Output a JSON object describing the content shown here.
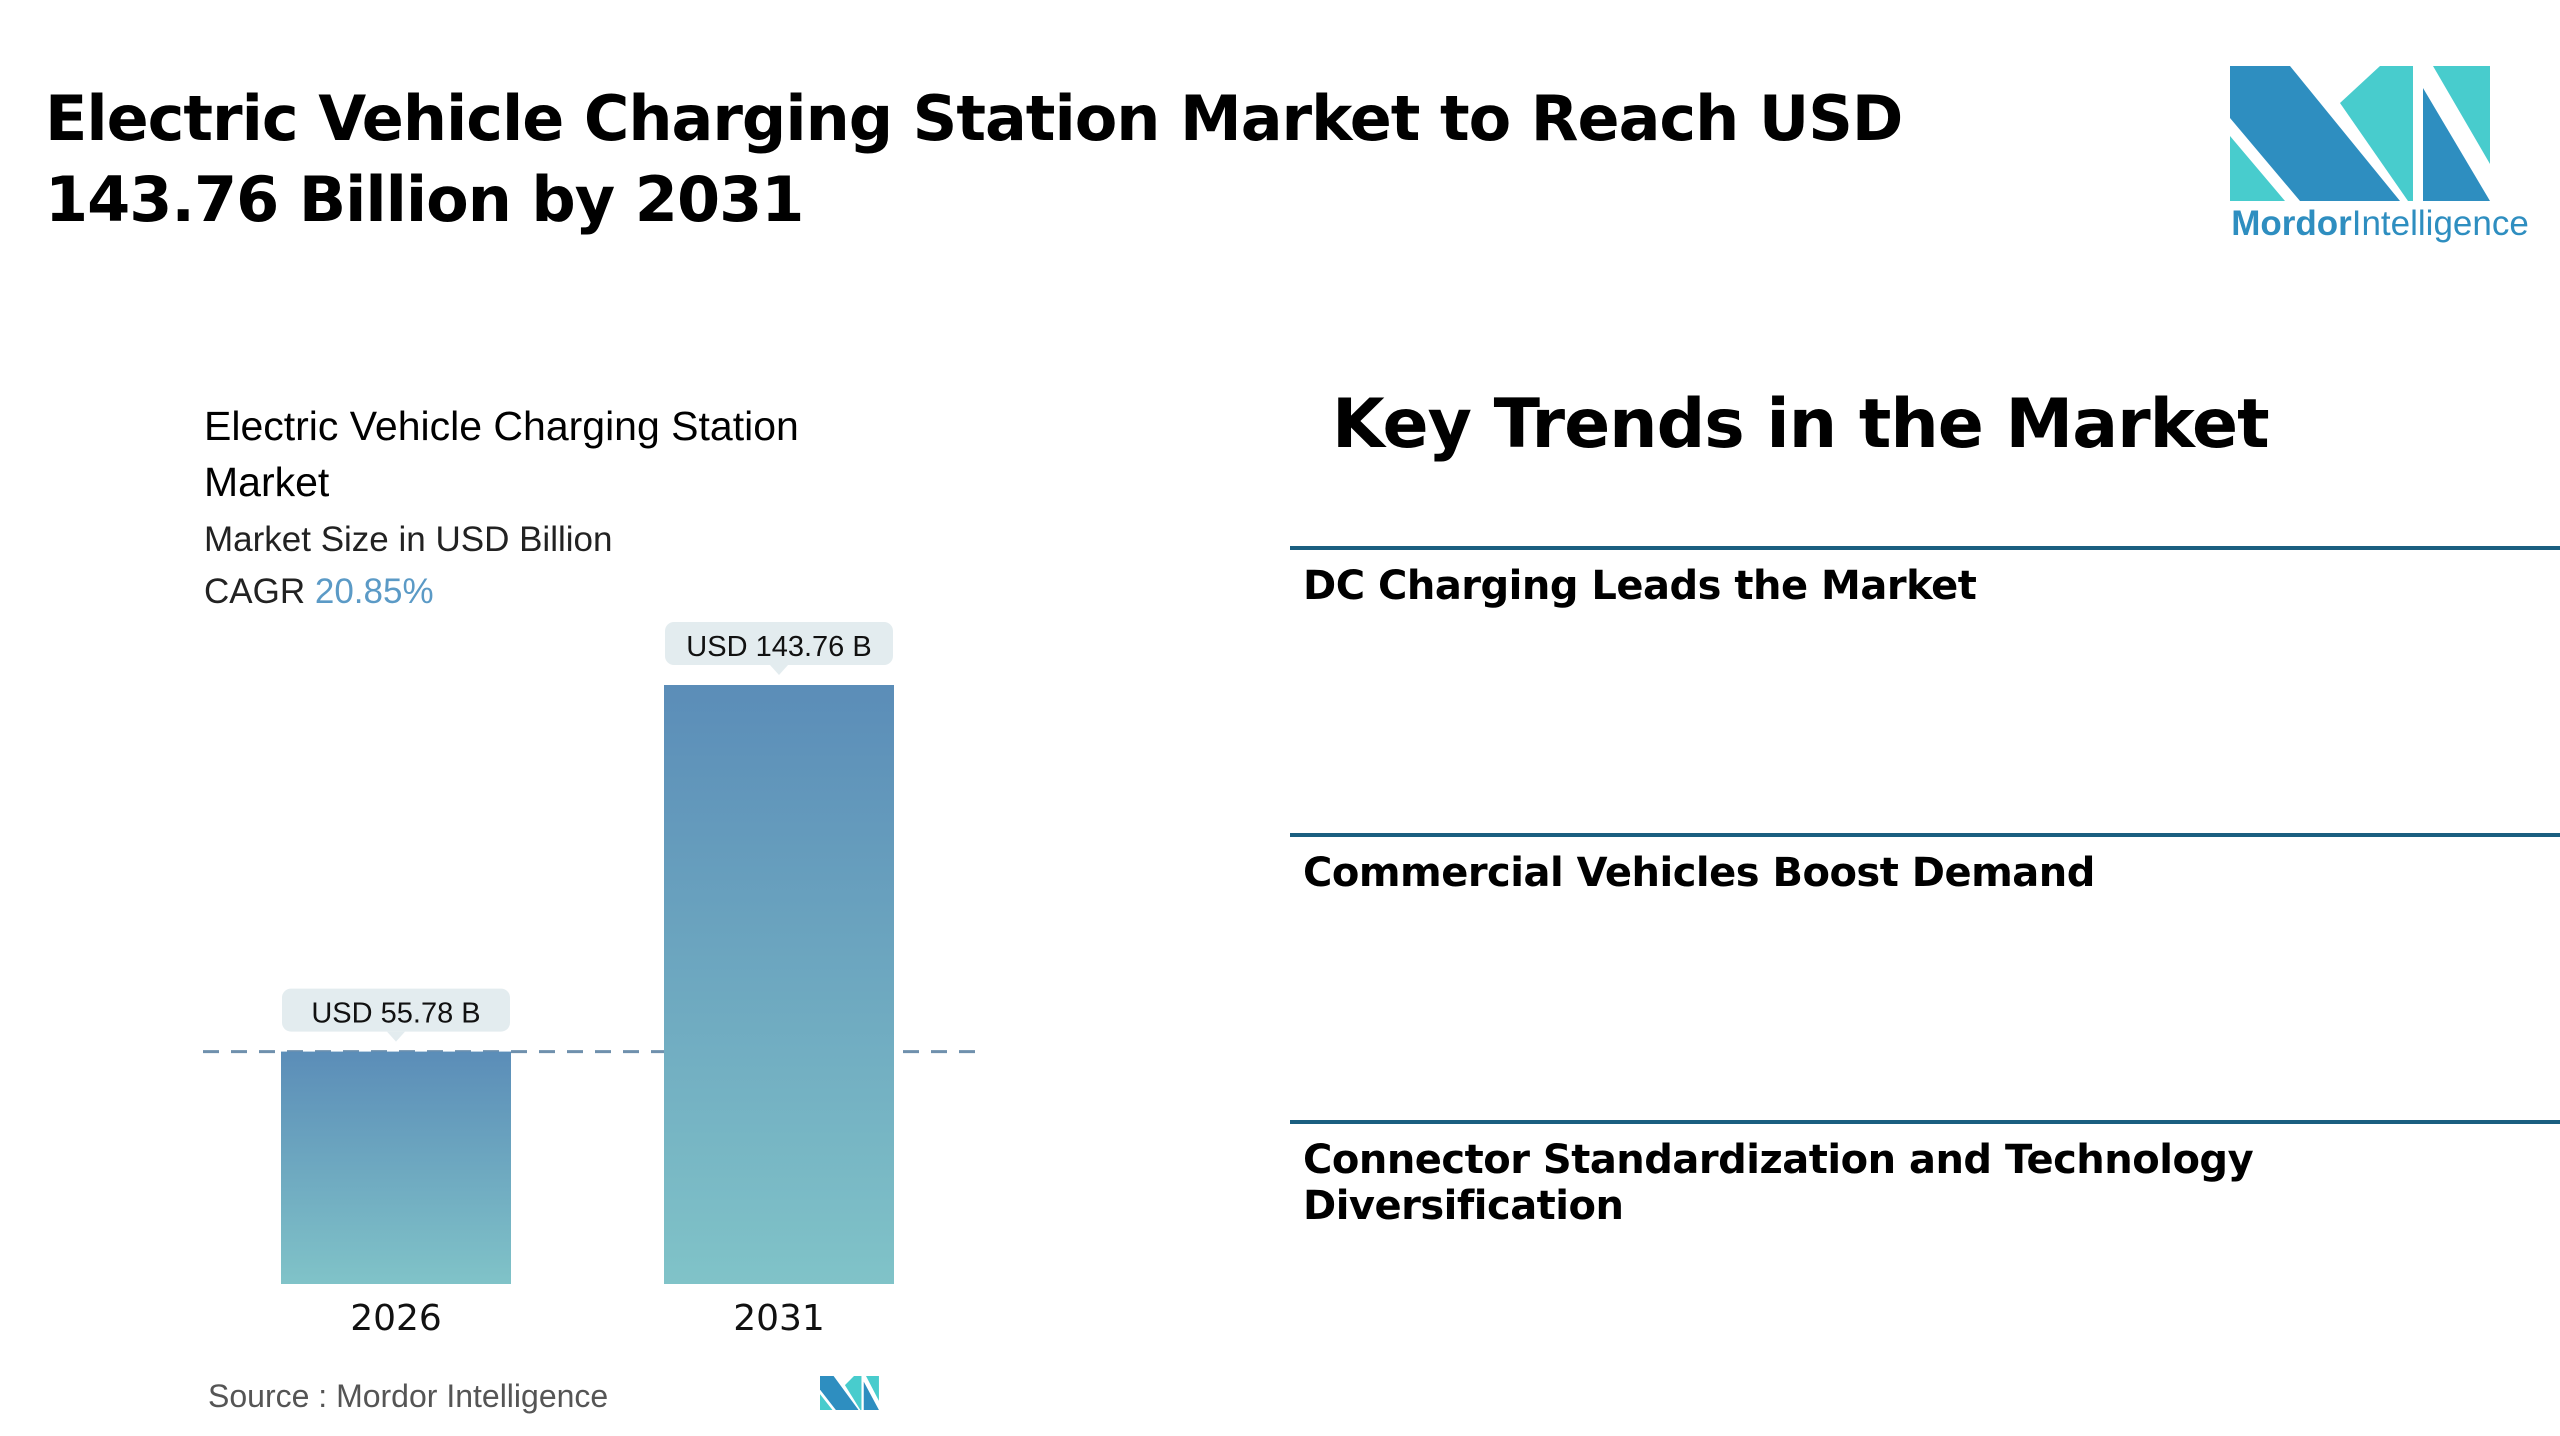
{
  "header": {
    "title": "Electric Vehicle Charging Station Market to Reach USD 143.76 Billion by 2031",
    "logo": {
      "brand_bold": "Mordor",
      "brand_light": "Intelligence",
      "colors": {
        "dark": "#2e8ec0",
        "light": "#48cccd"
      }
    }
  },
  "chart_panel": {
    "title": "Electric Vehicle Charging Station Market",
    "subtitle": "Market Size in USD Billion",
    "cagr_label": "CAGR",
    "cagr_value": "20.85%",
    "source": "Source :  Mordor Intelligence"
  },
  "chart_data": {
    "type": "bar",
    "title": "Electric Vehicle Charging Station Market",
    "ylabel": "Market Size in USD Billion",
    "categories": [
      "2026",
      "2031"
    ],
    "values": [
      55.78,
      143.76
    ],
    "data_labels": [
      "USD 55.78 B",
      "USD 143.76 B"
    ],
    "ylim": [
      0,
      143.76
    ],
    "grid": false,
    "reference_line": 55.78,
    "colors": {
      "bar_top": "#5b8db8",
      "bar_bottom": "#80c3c8",
      "label_bg": "#e3ecef",
      "dash": "#6f90ad"
    }
  },
  "key_trends": {
    "title": "Key Trends in the Market",
    "items": [
      "DC Charging Leads the Market",
      "Commercial Vehicles Boost Demand",
      "Connector Standardization and Technology Diversification"
    ],
    "line_color": "#1a5f80"
  }
}
